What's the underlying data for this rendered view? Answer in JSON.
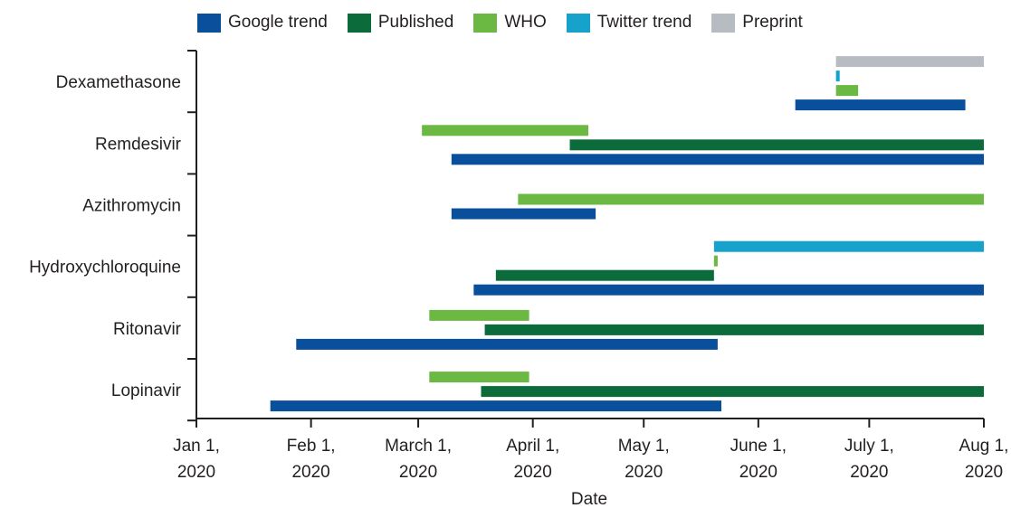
{
  "chart_data": {
    "type": "gantt",
    "xlabel": "Date",
    "x_axis": {
      "range": [
        "2020-01-01",
        "2020-08-01"
      ],
      "ticks": [
        {
          "date": "2020-01-01",
          "line1": "Jan 1,",
          "line2": "2020"
        },
        {
          "date": "2020-02-01",
          "line1": "Feb 1,",
          "line2": "2020"
        },
        {
          "date": "2020-03-01",
          "line1": "March 1,",
          "line2": "2020"
        },
        {
          "date": "2020-04-01",
          "line1": "April 1,",
          "line2": "2020"
        },
        {
          "date": "2020-05-01",
          "line1": "May 1,",
          "line2": "2020"
        },
        {
          "date": "2020-06-01",
          "line1": "June 1,",
          "line2": "2020"
        },
        {
          "date": "2020-07-01",
          "line1": "July 1,",
          "line2": "2020"
        },
        {
          "date": "2020-08-01",
          "line1": "Aug 1,",
          "line2": "2020"
        }
      ]
    },
    "legend": {
      "placement": "top",
      "entries": [
        {
          "key": "google",
          "label": "Google trend",
          "color": "#0a4f9c"
        },
        {
          "key": "published",
          "label": "Published",
          "color": "#0b6b3a"
        },
        {
          "key": "who",
          "label": "WHO",
          "color": "#6bb843"
        },
        {
          "key": "twitter",
          "label": "Twitter trend",
          "color": "#17a2cc"
        },
        {
          "key": "preprint",
          "label": "Preprint",
          "color": "#b7bcc2"
        }
      ]
    },
    "categories": [
      {
        "name": "Dexamethasone",
        "bars": [
          {
            "series": "preprint",
            "start": "2020-06-22",
            "end": "2020-08-01"
          },
          {
            "series": "twitter",
            "start": "2020-06-22",
            "end": "2020-06-23"
          },
          {
            "series": "who",
            "start": "2020-06-22",
            "end": "2020-06-28"
          },
          {
            "series": "google",
            "start": "2020-06-11",
            "end": "2020-07-27"
          }
        ]
      },
      {
        "name": "Remdesivir",
        "bars": [
          {
            "series": "who",
            "start": "2020-03-02",
            "end": "2020-04-16"
          },
          {
            "series": "published",
            "start": "2020-04-11",
            "end": "2020-08-01"
          },
          {
            "series": "google",
            "start": "2020-03-10",
            "end": "2020-08-01"
          }
        ]
      },
      {
        "name": "Azithromycin",
        "bars": [
          {
            "series": "who",
            "start": "2020-03-28",
            "end": "2020-08-01"
          },
          {
            "series": "google",
            "start": "2020-03-10",
            "end": "2020-04-18"
          }
        ]
      },
      {
        "name": "Hydroxychloroquine",
        "bars": [
          {
            "series": "twitter",
            "start": "2020-05-20",
            "end": "2020-08-01"
          },
          {
            "series": "who",
            "start": "2020-05-20",
            "end": "2020-05-21"
          },
          {
            "series": "published",
            "start": "2020-03-22",
            "end": "2020-05-20"
          },
          {
            "series": "google",
            "start": "2020-03-16",
            "end": "2020-08-01"
          }
        ]
      },
      {
        "name": "Ritonavir",
        "bars": [
          {
            "series": "who",
            "start": "2020-03-04",
            "end": "2020-03-31"
          },
          {
            "series": "published",
            "start": "2020-03-19",
            "end": "2020-08-01"
          },
          {
            "series": "google",
            "start": "2020-01-28",
            "end": "2020-05-21"
          }
        ]
      },
      {
        "name": "Lopinavir",
        "bars": [
          {
            "series": "who",
            "start": "2020-03-04",
            "end": "2020-03-31"
          },
          {
            "series": "published",
            "start": "2020-03-18",
            "end": "2020-08-01"
          },
          {
            "series": "google",
            "start": "2020-01-21",
            "end": "2020-05-22"
          }
        ]
      }
    ]
  }
}
